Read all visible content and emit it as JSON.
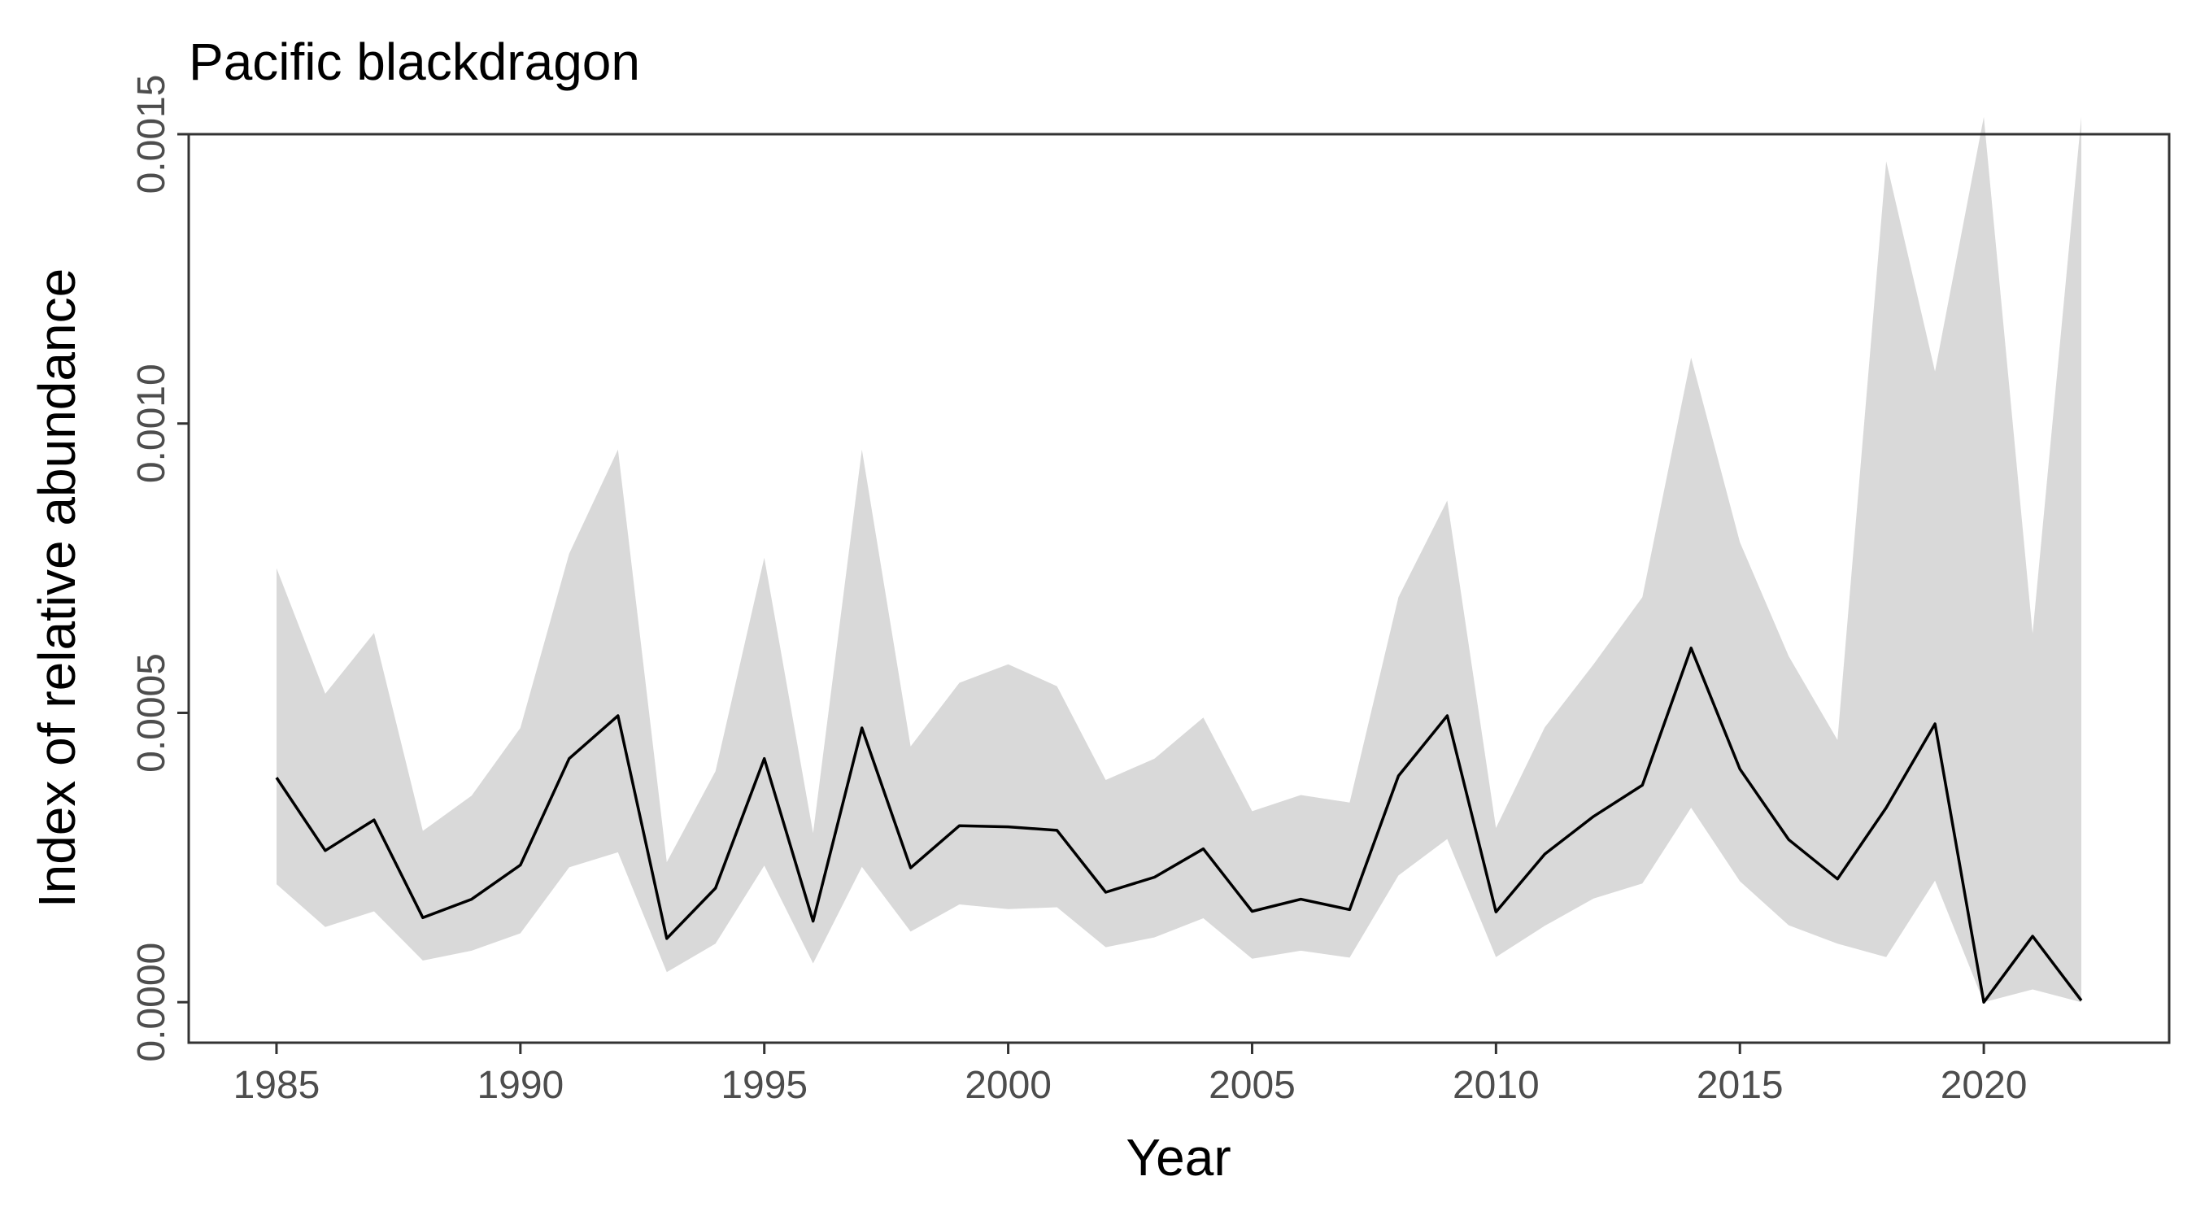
{
  "chart_data": {
    "type": "line",
    "title": "Pacific blackdragon",
    "xlabel": "Year",
    "ylabel": "Index of relative abundance",
    "xlim": [
      1983.2,
      2023.8
    ],
    "ylim": [
      -7e-05,
      0.0015
    ],
    "xticks": [
      "1985",
      "1990",
      "1995",
      "2000",
      "2005",
      "2010",
      "2015",
      "2020"
    ],
    "yticks": [
      "0.0000",
      "0.0005",
      "0.0010",
      "0.0015"
    ],
    "grid": false,
    "legend": "none",
    "colors": {
      "line": "#000000",
      "band": "#d9d9d9",
      "frame": "#333333"
    },
    "series": [
      {
        "x": [
          1985,
          1986,
          1987,
          1988,
          1989,
          1990,
          1991,
          1992,
          1993,
          1994,
          1995,
          1996,
          1997,
          1998,
          1999,
          2000,
          2001,
          2002,
          2003,
          2004,
          2005,
          2006,
          2007,
          2008,
          2009,
          2010,
          2011,
          2012,
          2013,
          2014,
          2015,
          2016,
          2017,
          2018,
          2019,
          2020,
          2021,
          2022
        ],
        "y": [
          0.000388,
          0.000262,
          0.000315,
          0.000146,
          0.000178,
          0.000237,
          0.000421,
          0.000495,
          0.00011,
          0.000197,
          0.000421,
          0.00014,
          0.000474,
          0.000232,
          0.000305,
          0.000303,
          0.000297,
          0.00019,
          0.000216,
          0.000265,
          0.000157,
          0.000178,
          0.00016,
          0.000391,
          0.000495,
          0.000156,
          0.000256,
          0.000321,
          0.000375,
          0.000612,
          0.000403,
          0.000281,
          0.000213,
          0.000336,
          0.000481,
          0.0,
          0.000114,
          3e-06
        ],
        "lower": [
          0.000204,
          0.00013,
          0.000157,
          7.2e-05,
          8.9e-05,
          0.000119,
          0.000233,
          0.000259,
          5.2e-05,
          0.000101,
          0.000236,
          6.7e-05,
          0.000234,
          0.000122,
          0.000169,
          0.000161,
          0.000164,
          9.5e-05,
          0.000112,
          0.000145,
          7.5e-05,
          8.9e-05,
          7.7e-05,
          0.000219,
          0.000282,
          7.8e-05,
          0.000132,
          0.000179,
          0.000205,
          0.000336,
          0.000209,
          0.000133,
          0.000101,
          7.8e-05,
          0.00021,
          0.0,
          2.2e-05,
          0.0
        ],
        "upper": [
          0.00075,
          0.000533,
          0.000638,
          0.000296,
          0.000357,
          0.000474,
          0.000775,
          0.000955,
          0.000242,
          0.000399,
          0.000768,
          0.000292,
          0.000955,
          0.000442,
          0.000552,
          0.000584,
          0.000546,
          0.000384,
          0.000421,
          0.000492,
          0.00033,
          0.000358,
          0.000345,
          0.0007,
          0.000867,
          0.000301,
          0.000475,
          0.000584,
          0.0007,
          0.001114,
          0.000795,
          0.000598,
          0.000453,
          0.001453,
          0.00109,
          0.00153,
          0.000637,
          0.00153
        ]
      }
    ]
  }
}
